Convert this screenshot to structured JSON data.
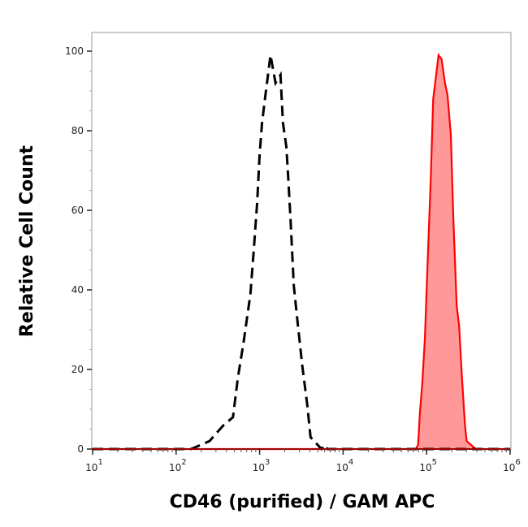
{
  "chart_data": {
    "type": "area",
    "title": "",
    "xlabel": "CD46 (purified) / GAM APC",
    "ylabel": "Relative Cell Count",
    "x_scale": "log",
    "xlim": [
      10,
      1000000
    ],
    "ylim": [
      0,
      100
    ],
    "x_ticks": [
      {
        "base": "10",
        "exp": "1"
      },
      {
        "base": "10",
        "exp": "2"
      },
      {
        "base": "10",
        "exp": "3"
      },
      {
        "base": "10",
        "exp": "4"
      },
      {
        "base": "10",
        "exp": "5"
      },
      {
        "base": "10",
        "exp": "6"
      }
    ],
    "y_ticks": [
      "0",
      "20",
      "40",
      "60",
      "80",
      "100"
    ],
    "grid": false,
    "series": [
      {
        "style": "dashed-line",
        "color": "#000000",
        "x": [
          10,
          151,
          196,
          251,
          370,
          480,
          550,
          645,
          776,
          851,
          935,
          1000,
          1070,
          1175,
          1350,
          1550,
          1780,
          1900,
          2090,
          2190,
          2340,
          2570,
          2880,
          3240,
          3720,
          4070,
          5500,
          6000,
          6500,
          1000000
        ],
        "y": [
          0,
          0,
          1,
          2,
          6,
          8,
          18,
          27,
          39,
          50,
          62,
          74,
          82,
          89,
          99,
          92,
          94,
          82,
          76,
          69,
          58,
          41,
          31,
          21,
          11,
          3,
          0,
          1,
          0,
          0
        ]
      },
      {
        "style": "filled-line",
        "color": "#ff0000",
        "fill": "#ff9999",
        "x": [
          10,
          74000,
          79000,
          83000,
          89000,
          95500,
          102000,
          112000,
          120000,
          139000,
          151000,
          166000,
          178000,
          195000,
          209000,
          229000,
          245000,
          263000,
          288000,
          302000,
          389000,
          1000000
        ],
        "y": [
          0,
          0,
          1,
          9,
          17,
          28,
          45,
          68,
          88,
          99,
          98,
          92,
          89,
          79,
          58,
          36,
          31,
          19,
          6,
          2,
          0,
          0
        ]
      }
    ]
  }
}
